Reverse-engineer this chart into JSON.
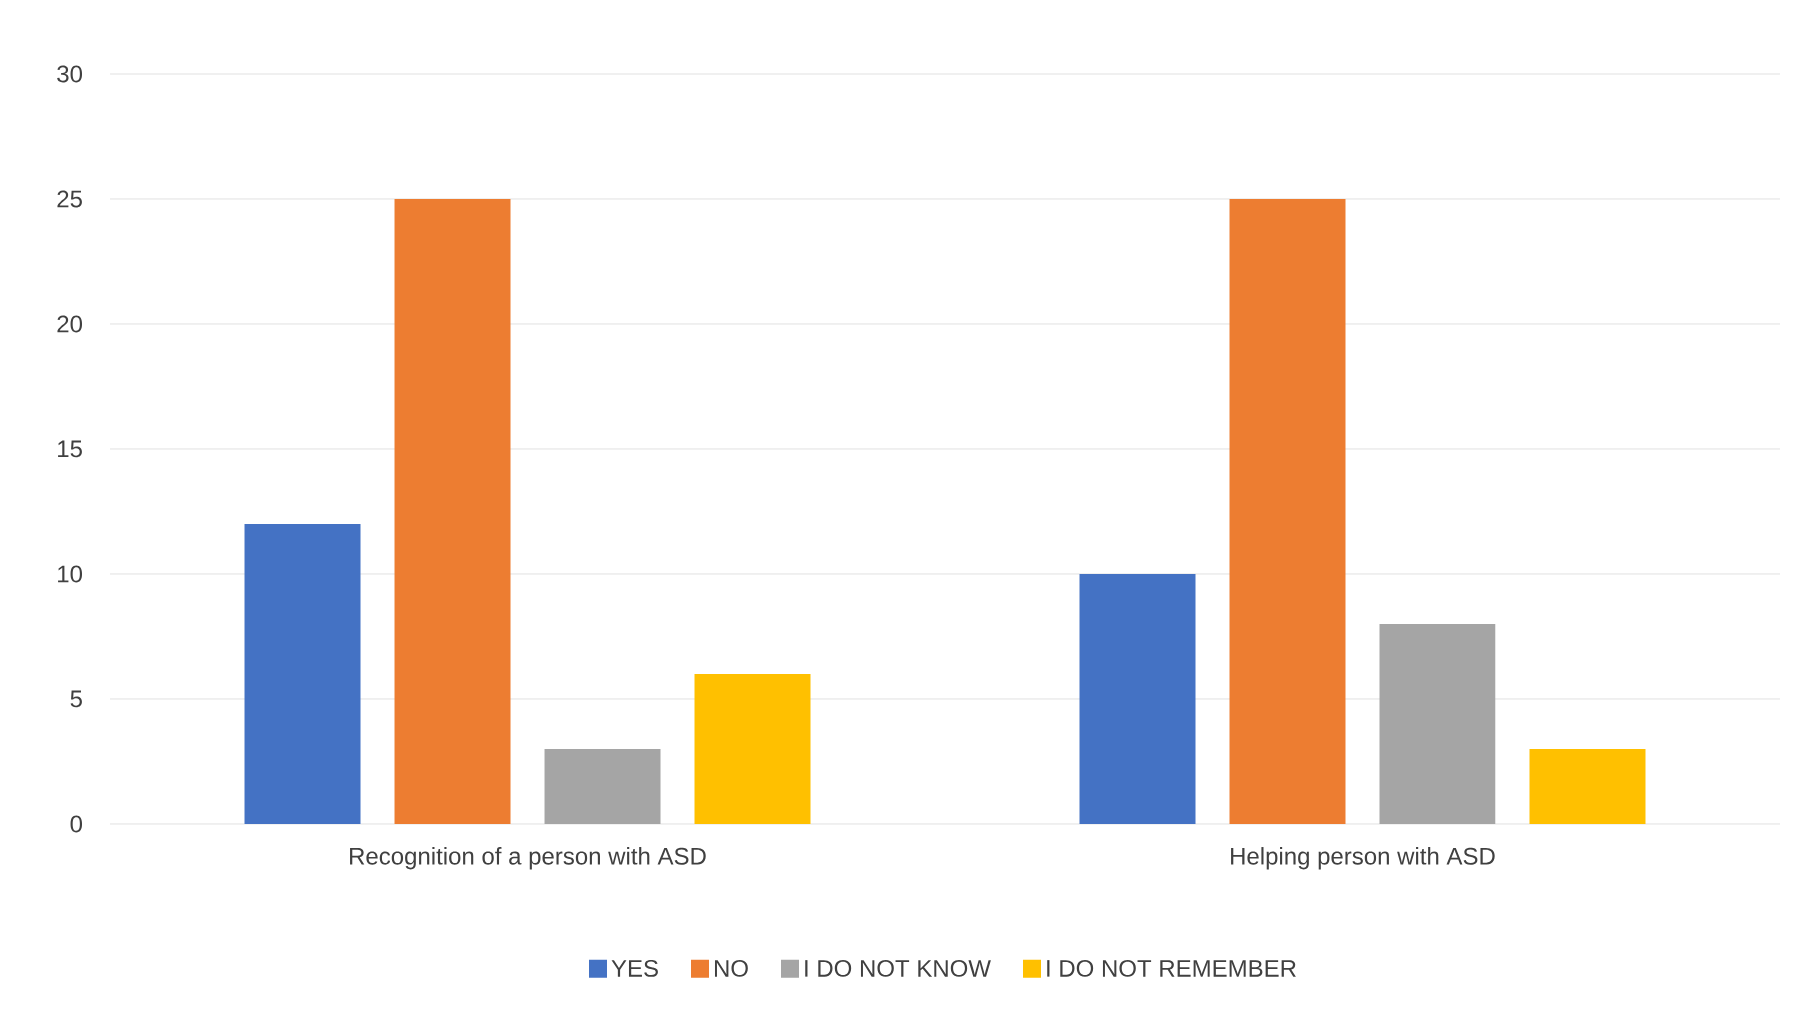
{
  "chart_data": {
    "type": "bar",
    "categories": [
      "Recognition of a person with ASD",
      "Helping person with ASD"
    ],
    "series": [
      {
        "name": "YES",
        "color": "#4472c4",
        "values": [
          12,
          10
        ]
      },
      {
        "name": "NO",
        "color": "#ed7d31",
        "values": [
          25,
          25
        ]
      },
      {
        "name": "I DO NOT KNOW",
        "color": "#a5a5a5",
        "values": [
          3,
          8
        ]
      },
      {
        "name": "I DO NOT REMEMBER",
        "color": "#ffc000",
        "values": [
          6,
          3
        ]
      }
    ],
    "ylim": [
      0,
      30
    ],
    "yticks": [
      0,
      5,
      10,
      15,
      20,
      25,
      30
    ],
    "grid": "y",
    "legend": "bottom"
  }
}
